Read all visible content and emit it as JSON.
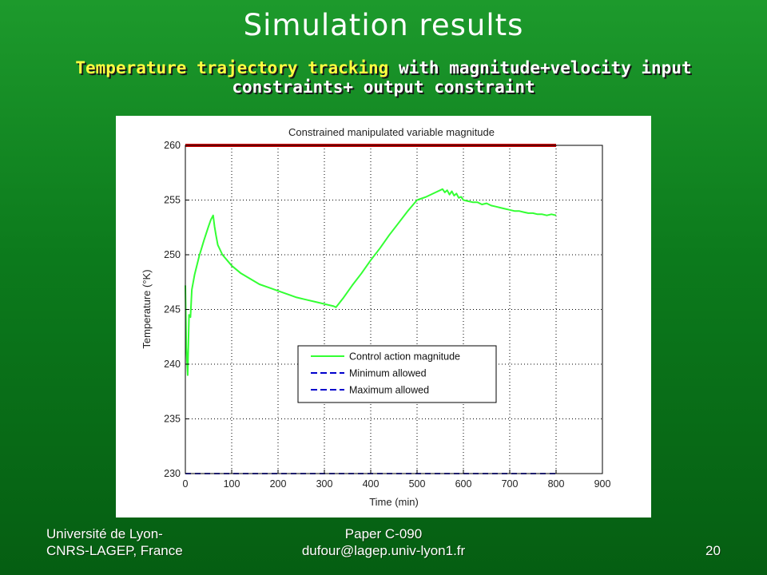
{
  "slide": {
    "title": "Simulation results",
    "subtitle_highlight": "Temperature trajectory tracking",
    "subtitle_rest_line1": " with magnitude+velocity input",
    "subtitle_line2": "constraints+ output constraint"
  },
  "footer": {
    "left_line1": "Université de Lyon-",
    "left_line2": "CNRS-LAGEP, France",
    "center_line1": "Paper C-090",
    "center_line2": "dufour@lagep.univ-lyon1.fr",
    "page_number": "20"
  },
  "colors": {
    "background_top": "#1d9a2c",
    "background_bottom": "#055e12",
    "subtitle_highlight": "#ffff40",
    "control_action": "#33ff33",
    "constraint_lines": "#0000cc",
    "max_overlay": "#cc0000"
  },
  "chart_data": {
    "type": "line",
    "title": "Constrained manipulated variable magnitude",
    "xlabel": "Time (min)",
    "ylabel": "Temperature (°K)",
    "xlim": [
      0,
      900
    ],
    "ylim": [
      230,
      260
    ],
    "xticks": [
      0,
      100,
      200,
      300,
      400,
      500,
      600,
      700,
      800,
      900
    ],
    "yticks": [
      230,
      235,
      240,
      245,
      250,
      255,
      260
    ],
    "grid": true,
    "legend_position": "lower-right",
    "series": [
      {
        "name": "Control action magnitude",
        "style": "solid",
        "color": "#33ff33",
        "x": [
          0,
          2,
          5,
          8,
          11,
          14,
          20,
          30,
          40,
          50,
          55,
          60,
          63,
          66,
          70,
          80,
          90,
          100,
          120,
          140,
          160,
          180,
          200,
          220,
          240,
          260,
          280,
          300,
          320,
          325,
          340,
          360,
          380,
          400,
          420,
          440,
          460,
          480,
          500,
          520,
          540,
          555,
          560,
          565,
          570,
          575,
          580,
          585,
          590,
          595,
          600,
          610,
          620,
          630,
          640,
          650,
          660,
          670,
          680,
          690,
          700,
          710,
          720,
          730,
          740,
          750,
          760,
          770,
          780,
          790,
          800
        ],
        "y": [
          247.2,
          241.5,
          239.0,
          244.5,
          244.3,
          246.8,
          248.2,
          249.9,
          251.3,
          252.6,
          253.2,
          253.6,
          252.6,
          251.8,
          250.9,
          250.0,
          249.5,
          249.0,
          248.3,
          247.8,
          247.3,
          247.0,
          246.7,
          246.4,
          246.1,
          245.9,
          245.7,
          245.5,
          245.3,
          245.2,
          246.0,
          247.2,
          248.3,
          249.5,
          250.6,
          251.8,
          252.9,
          254.0,
          255.0,
          255.3,
          255.7,
          256.0,
          255.7,
          255.9,
          255.5,
          255.8,
          255.4,
          255.6,
          255.2,
          255.3,
          255.0,
          254.9,
          254.8,
          254.8,
          254.6,
          254.7,
          254.5,
          254.4,
          254.3,
          254.2,
          254.1,
          254.0,
          254.0,
          253.9,
          253.8,
          253.8,
          253.7,
          253.7,
          253.6,
          253.7,
          253.6
        ]
      },
      {
        "name": "Minimum allowed",
        "style": "dashed",
        "color": "#0000cc",
        "x": [
          0,
          800
        ],
        "y": [
          230,
          230
        ]
      },
      {
        "name": "Maximum allowed",
        "style": "dashed",
        "color": "#0000cc",
        "x": [
          0,
          800
        ],
        "y": [
          260,
          260
        ]
      },
      {
        "style": "solid-thick",
        "color": "#cc0000",
        "x": [
          0,
          800
        ],
        "y": [
          260,
          260
        ]
      }
    ]
  }
}
